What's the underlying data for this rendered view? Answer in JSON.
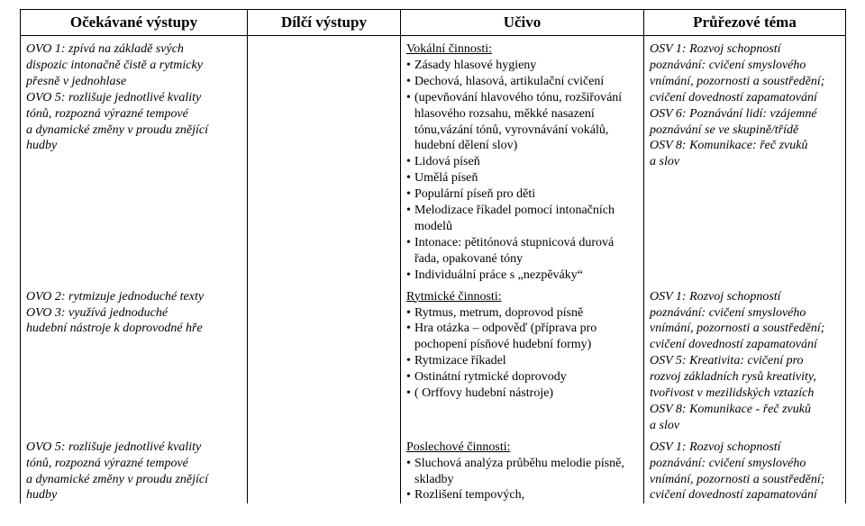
{
  "headers": {
    "c1": "Očekávané výstupy",
    "c2": "Dílčí výstupy",
    "c3": "Učivo",
    "c4": "Průřezové téma"
  },
  "rows": [
    {
      "col1": {
        "lines": [
          "OVO 1: zpívá na základě svých",
          "dispozic intonačně čistě a rytmicky",
          "přesně v jednohlase",
          "OVO 5: rozlišuje jednotlivé kvality",
          "tónů, rozpozná výrazné tempové",
          "a dynamické změny v proudu znějící",
          "hudby"
        ]
      },
      "col3": {
        "heading": "Vokální činnosti:",
        "items": [
          "Zásady hlasové hygieny",
          "Dechová, hlasová, artikulační cvičení",
          "(upevňování hlavového tónu, rozšiřování hlasového rozsahu, měkké nasazení tónu,vázání tónů, vyrovnávání vokálů, hudební dělení slov)",
          "Lidová píseň",
          "Umělá píseň",
          "Populární píseň pro děti",
          "Melodizace říkadel pomocí intonačních modelů",
          "Intonace: pětitónová stupnicová durová řada, opakované tóny",
          "Individuální práce s „nezpěváky“"
        ]
      },
      "col4": {
        "lines": [
          "OSV 1: Rozvoj schopností",
          "poznávání: cvičení smyslového",
          "vnímání, pozornosti a soustředění;",
          "cvičení dovedností zapamatování",
          "OSV 6: Poznávání lidí: vzájemné",
          "poznávání se ve skupině/třídě",
          "OSV 8: Komunikace: řeč zvuků",
          "a slov"
        ]
      }
    },
    {
      "col1": {
        "lines": [
          "OVO 2: rytmizuje jednoduché texty",
          "OVO 3: využívá jednoduché",
          "hudební nástroje k doprovodné hře"
        ]
      },
      "col3": {
        "heading": "Rytmické činnosti:",
        "items": [
          "Rytmus, metrum, doprovod písně",
          "Hra otázka – odpověď (příprava pro pochopení písňové hudební formy)",
          "Rytmizace říkadel",
          "Ostinátní rytmické doprovody",
          "( Orffovy hudební nástroje)"
        ]
      },
      "col4": {
        "lines": [
          "OSV 1: Rozvoj schopností",
          "poznávání: cvičení smyslového",
          "vnímání, pozornosti a soustředění;",
          "cvičení dovedností zapamatování",
          "OSV 5: Kreativita: cvičení pro",
          "rozvoj základních rysů kreativity,",
          "tvořivost v mezilidských vztazích",
          "OSV 8: Komunikace - řeč zvuků",
          "a slov"
        ]
      }
    },
    {
      "col1": {
        "lines": [
          "OVO 5: rozlišuje jednotlivé kvality",
          "tónů, rozpozná výrazné tempové",
          "a dynamické změny v proudu znějící",
          "hudby"
        ]
      },
      "col3": {
        "heading": "Poslechové činnosti:",
        "items": [
          "Sluchová analýza průběhu melodie písně, skladby",
          "Rozlišení tempových,"
        ]
      },
      "col4": {
        "lines": [
          "OSV 1: Rozvoj schopností",
          "poznávání: cvičení smyslového",
          "vnímání, pozornosti a soustředění;",
          "cvičení dovedností zapamatování"
        ]
      }
    }
  ]
}
